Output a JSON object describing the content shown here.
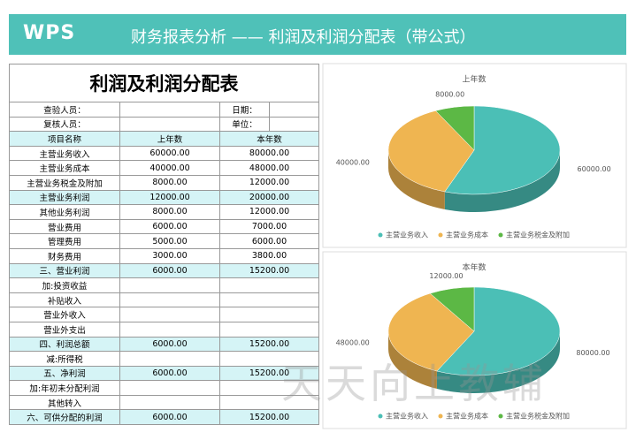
{
  "header": {
    "logo": "WPS",
    "title": "财务报表分析 —— 利润及利润分配表（带公式）"
  },
  "table": {
    "title": "利润及利润分配表",
    "meta": [
      [
        "查验人员：",
        "日期："
      ],
      [
        "复核人员：",
        "单位："
      ]
    ],
    "columns": [
      "项目名称",
      "上年数",
      "本年数"
    ],
    "rows": [
      {
        "label": "主营业务收入",
        "values": [
          "60000.00",
          "80000.00"
        ]
      },
      {
        "label": "主营业务成本",
        "values": [
          "40000.00",
          "48000.00"
        ]
      },
      {
        "label": "主营业务税金及附加",
        "values": [
          "8000.00",
          "12000.00"
        ]
      },
      {
        "label": "主营业务利润",
        "values": [
          "12000.00",
          "20000.00"
        ],
        "highlight": true
      },
      {
        "label": "其他业务利润",
        "values": [
          "8000.00",
          "12000.00"
        ]
      },
      {
        "label": "营业费用",
        "values": [
          "6000.00",
          "7000.00"
        ]
      },
      {
        "label": "管理费用",
        "values": [
          "5000.00",
          "6000.00"
        ]
      },
      {
        "label": "财务费用",
        "values": [
          "3000.00",
          "3800.00"
        ]
      },
      {
        "label": "三、营业利润",
        "values": [
          "6000.00",
          "15200.00"
        ],
        "highlight": true
      },
      {
        "label": "加:投资收益"
      },
      {
        "label": "补贴收入"
      },
      {
        "label": "营业外收入"
      },
      {
        "label": "营业外支出"
      },
      {
        "label": "四、利润总额",
        "values": [
          "6000.00",
          "15200.00"
        ],
        "highlight": true
      },
      {
        "label": "减:所得税"
      },
      {
        "label": "五、净利润",
        "values": [
          "6000.00",
          "15200.00"
        ],
        "highlight": true
      },
      {
        "label": "加:年初未分配利润"
      },
      {
        "label": "其他转入"
      },
      {
        "label": "六、可供分配的利润",
        "values": [
          "6000.00",
          "15200.00"
        ],
        "highlight": true
      }
    ]
  },
  "chart_data": [
    {
      "type": "pie",
      "title": "上年数",
      "categories": [
        "主营业务收入",
        "主营业务成本",
        "主营业务税金及附加"
      ],
      "values": [
        60000,
        40000,
        8000
      ],
      "value_labels": [
        "60000.00",
        "40000.00",
        "8000.00"
      ],
      "colors": [
        "#4bbfb6",
        "#efb551",
        "#5cb845"
      ],
      "legend": "bottom"
    },
    {
      "type": "pie",
      "title": "本年数",
      "categories": [
        "主营业务收入",
        "主营业务成本",
        "主营业务税金及附加"
      ],
      "values": [
        80000,
        48000,
        12000
      ],
      "value_labels": [
        "80000.00",
        "48000.00",
        "12000.00"
      ],
      "colors": [
        "#4bbfb6",
        "#efb551",
        "#5cb845"
      ],
      "legend": "bottom"
    }
  ],
  "watermark": "天天向上教辅"
}
